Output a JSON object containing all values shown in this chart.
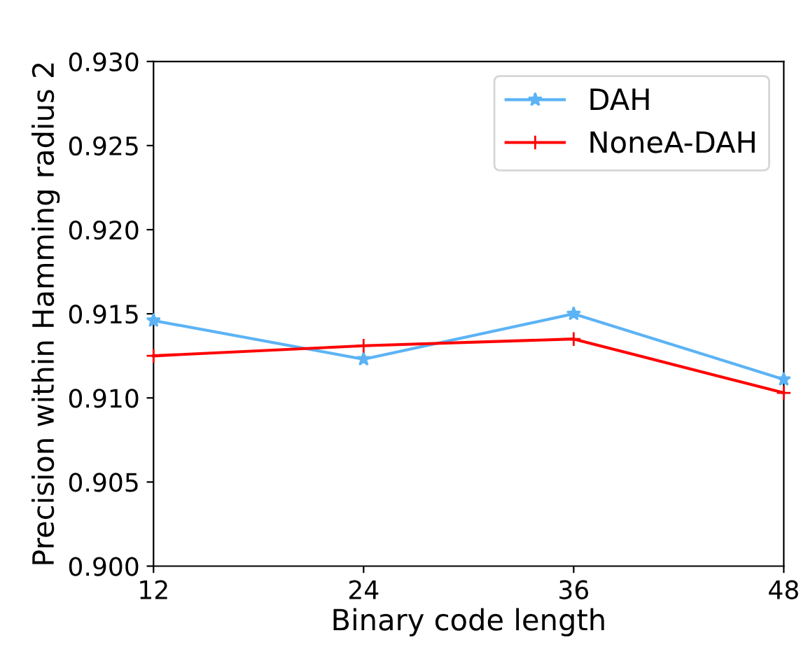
{
  "chart_data": {
    "type": "line",
    "xlabel": "Binary code length",
    "ylabel": "Precision within Hamming radius 2",
    "x": [
      12,
      24,
      36,
      48
    ],
    "series": [
      {
        "name": "DAH",
        "color": "#5cb3f5",
        "marker": "star",
        "values": [
          0.9146,
          0.9123,
          0.915,
          0.9111
        ]
      },
      {
        "name": "NoneA-DAH",
        "color": "#ff0000",
        "marker": "cross",
        "values": [
          0.9125,
          0.9131,
          0.9135,
          0.9103
        ]
      }
    ],
    "xlim": [
      12,
      48
    ],
    "xticks": [
      12,
      24,
      36,
      48
    ],
    "ylim": [
      0.9,
      0.93
    ],
    "yticks": [
      {
        "value": 0.9,
        "label": "0.900"
      },
      {
        "value": 0.905,
        "label": "0.905"
      },
      {
        "value": 0.91,
        "label": "0.910"
      },
      {
        "value": 0.915,
        "label": "0.915"
      },
      {
        "value": 0.92,
        "label": "0.920"
      },
      {
        "value": 0.925,
        "label": "0.925"
      },
      {
        "value": 0.93,
        "label": "0.930"
      }
    ],
    "grid": false,
    "legend": "top right",
    "line_style": "solid"
  }
}
